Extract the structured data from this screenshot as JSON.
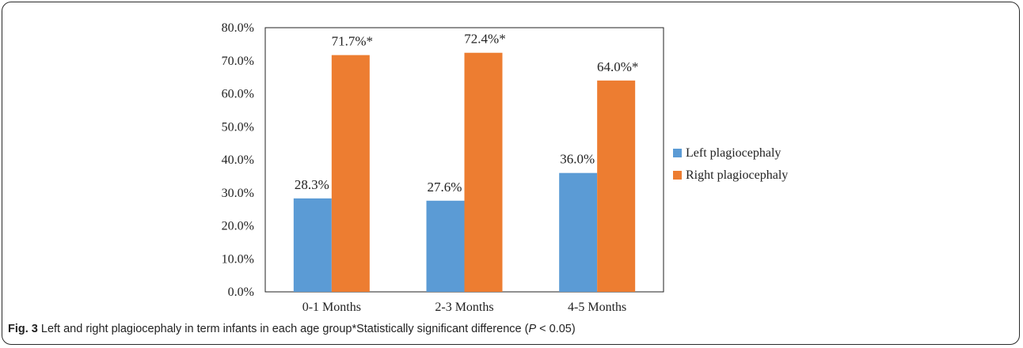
{
  "caption": {
    "fig_label": "Fig. 3",
    "text": " Left and right plagiocephaly in term infants in each age group*Statistically significant difference (",
    "p_symbol": "P",
    "p_rest": " < 0.05)"
  },
  "chart_data": {
    "type": "bar",
    "categories": [
      "0-1 Months",
      "2-3 Months",
      "4-5 Months"
    ],
    "series": [
      {
        "name": "Left plagiocephaly",
        "color": "#5b9bd5",
        "values": [
          28.3,
          27.6,
          36.0
        ],
        "labels": [
          "28.3%",
          "27.6%",
          "36.0%"
        ]
      },
      {
        "name": "Right plagiocephaly",
        "color": "#ed7d31",
        "values": [
          71.7,
          72.4,
          64.0
        ],
        "labels": [
          "71.7%*",
          "72.4%*",
          "64.0%*"
        ]
      }
    ],
    "ylim": [
      0,
      80
    ],
    "yticks": [
      "0.0%",
      "10.0%",
      "20.0%",
      "30.0%",
      "40.0%",
      "50.0%",
      "60.0%",
      "70.0%",
      "80.0%"
    ],
    "legend_position": "right",
    "grid": false
  }
}
